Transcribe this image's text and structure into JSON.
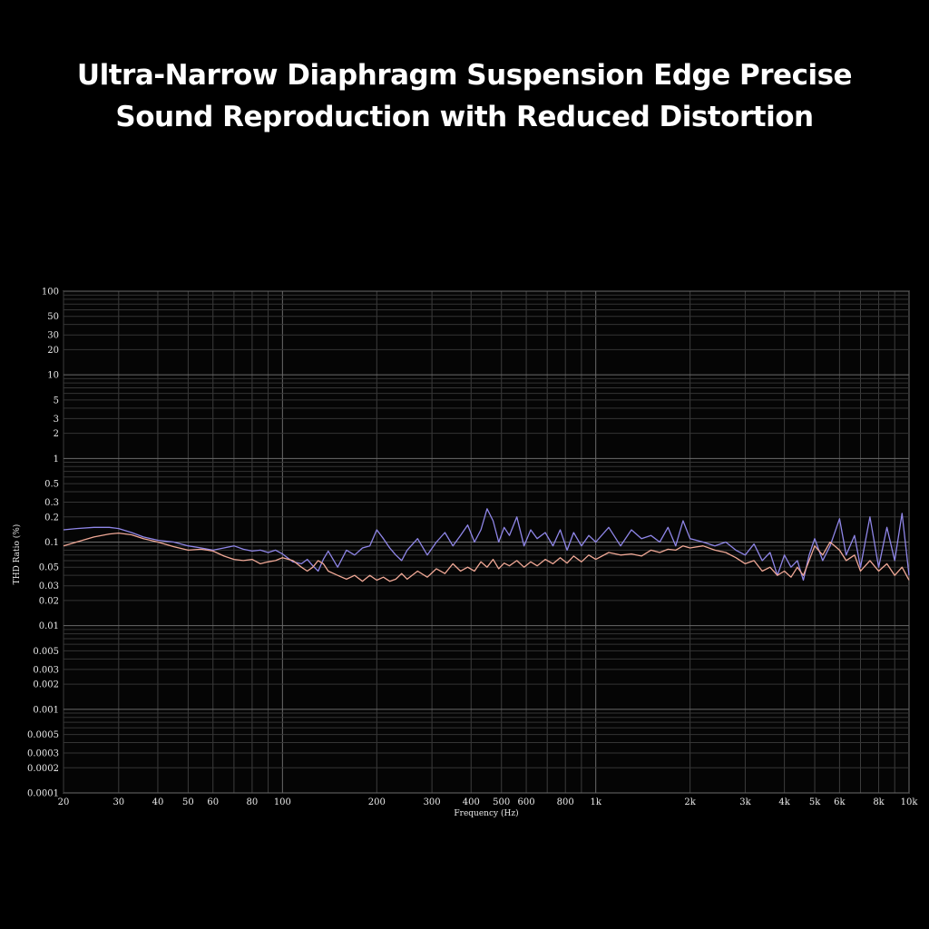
{
  "headline": {
    "line1": "Ultra-Narrow Diaphragm Suspension Edge Precise",
    "line2": "Sound Reproduction with Reduced Distortion"
  },
  "chart_data": {
    "type": "line",
    "title": "",
    "xlabel": "Frequency (Hz)",
    "ylabel": "THD Ratio (%)",
    "x_scale": "log",
    "y_scale": "log",
    "xlim": [
      20,
      10000
    ],
    "ylim": [
      0.0001,
      100
    ],
    "grid": true,
    "x_ticks": [
      {
        "value": 20,
        "label": "20"
      },
      {
        "value": 30,
        "label": "30"
      },
      {
        "value": 40,
        "label": "40"
      },
      {
        "value": 50,
        "label": "50"
      },
      {
        "value": 60,
        "label": "60"
      },
      {
        "value": 80,
        "label": "80"
      },
      {
        "value": 100,
        "label": "100"
      },
      {
        "value": 200,
        "label": "200"
      },
      {
        "value": 300,
        "label": "300"
      },
      {
        "value": 400,
        "label": "400"
      },
      {
        "value": 500,
        "label": "500"
      },
      {
        "value": 600,
        "label": "600"
      },
      {
        "value": 800,
        "label": "800"
      },
      {
        "value": 1000,
        "label": "1k"
      },
      {
        "value": 2000,
        "label": "2k"
      },
      {
        "value": 3000,
        "label": "3k"
      },
      {
        "value": 4000,
        "label": "4k"
      },
      {
        "value": 5000,
        "label": "5k"
      },
      {
        "value": 6000,
        "label": "6k"
      },
      {
        "value": 8000,
        "label": "8k"
      },
      {
        "value": 10000,
        "label": "10k"
      }
    ],
    "y_ticks": [
      {
        "value": 100,
        "label": "100"
      },
      {
        "value": 50,
        "label": "50"
      },
      {
        "value": 30,
        "label": "30"
      },
      {
        "value": 20,
        "label": "20"
      },
      {
        "value": 10,
        "label": "10"
      },
      {
        "value": 5,
        "label": "5"
      },
      {
        "value": 3,
        "label": "3"
      },
      {
        "value": 2,
        "label": "2"
      },
      {
        "value": 1,
        "label": "1"
      },
      {
        "value": 0.5,
        "label": "0.5"
      },
      {
        "value": 0.3,
        "label": "0.3"
      },
      {
        "value": 0.2,
        "label": "0.2"
      },
      {
        "value": 0.1,
        "label": "0.1"
      },
      {
        "value": 0.05,
        "label": "0.05"
      },
      {
        "value": 0.03,
        "label": "0.03"
      },
      {
        "value": 0.02,
        "label": "0.02"
      },
      {
        "value": 0.01,
        "label": "0.01"
      },
      {
        "value": 0.005,
        "label": "0.005"
      },
      {
        "value": 0.003,
        "label": "0.003"
      },
      {
        "value": 0.002,
        "label": "0.002"
      },
      {
        "value": 0.001,
        "label": "0.001"
      },
      {
        "value": 0.0005,
        "label": "0.0005"
      },
      {
        "value": 0.0003,
        "label": "0.0003"
      },
      {
        "value": 0.0002,
        "label": "0.0002"
      },
      {
        "value": 0.0001,
        "label": "0.0001"
      }
    ],
    "series": [
      {
        "color": "#8f86e8",
        "x": [
          20,
          22,
          25,
          28,
          30,
          33,
          36,
          40,
          45,
          50,
          55,
          60,
          65,
          70,
          75,
          80,
          85,
          90,
          95,
          100,
          108,
          115,
          120,
          125,
          130,
          135,
          140,
          150,
          160,
          170,
          180,
          190,
          200,
          210,
          220,
          230,
          240,
          250,
          270,
          290,
          310,
          330,
          350,
          370,
          390,
          410,
          430,
          450,
          470,
          490,
          510,
          530,
          560,
          590,
          620,
          650,
          690,
          730,
          770,
          810,
          850,
          900,
          950,
          1000,
          1100,
          1200,
          1300,
          1400,
          1500,
          1600,
          1700,
          1800,
          1900,
          2000,
          2200,
          2400,
          2600,
          2800,
          3000,
          3200,
          3400,
          3600,
          3800,
          4000,
          4200,
          4400,
          4600,
          4800,
          5000,
          5300,
          5600,
          6000,
          6300,
          6700,
          7000,
          7500,
          8000,
          8500,
          9000,
          9500,
          10000
        ],
        "y": [
          0.14,
          0.145,
          0.15,
          0.15,
          0.145,
          0.13,
          0.115,
          0.105,
          0.1,
          0.09,
          0.085,
          0.08,
          0.085,
          0.09,
          0.082,
          0.078,
          0.08,
          0.075,
          0.08,
          0.072,
          0.058,
          0.055,
          0.062,
          0.052,
          0.045,
          0.062,
          0.078,
          0.05,
          0.08,
          0.07,
          0.085,
          0.09,
          0.14,
          0.11,
          0.085,
          0.07,
          0.06,
          0.08,
          0.11,
          0.07,
          0.1,
          0.13,
          0.09,
          0.12,
          0.16,
          0.1,
          0.14,
          0.25,
          0.18,
          0.1,
          0.15,
          0.12,
          0.2,
          0.09,
          0.14,
          0.11,
          0.13,
          0.09,
          0.14,
          0.08,
          0.13,
          0.09,
          0.12,
          0.1,
          0.15,
          0.09,
          0.14,
          0.11,
          0.12,
          0.1,
          0.15,
          0.09,
          0.18,
          0.11,
          0.1,
          0.09,
          0.1,
          0.08,
          0.07,
          0.095,
          0.06,
          0.075,
          0.04,
          0.07,
          0.05,
          0.06,
          0.035,
          0.07,
          0.11,
          0.06,
          0.09,
          0.19,
          0.07,
          0.12,
          0.05,
          0.2,
          0.05,
          0.15,
          0.06,
          0.22,
          0.04
        ]
      },
      {
        "color": "#f0a896",
        "x": [
          20,
          22,
          25,
          28,
          30,
          33,
          36,
          40,
          45,
          50,
          55,
          60,
          65,
          70,
          75,
          80,
          85,
          90,
          95,
          100,
          108,
          115,
          120,
          125,
          130,
          135,
          140,
          150,
          160,
          170,
          180,
          190,
          200,
          210,
          220,
          230,
          240,
          250,
          270,
          290,
          310,
          330,
          350,
          370,
          390,
          410,
          430,
          450,
          470,
          490,
          510,
          530,
          560,
          590,
          620,
          650,
          690,
          730,
          770,
          810,
          850,
          900,
          950,
          1000,
          1100,
          1200,
          1300,
          1400,
          1500,
          1600,
          1700,
          1800,
          1900,
          2000,
          2200,
          2400,
          2600,
          2800,
          3000,
          3200,
          3400,
          3600,
          3800,
          4000,
          4200,
          4400,
          4600,
          4800,
          5000,
          5300,
          5600,
          6000,
          6300,
          6700,
          7000,
          7500,
          8000,
          8500,
          9000,
          9500,
          10000
        ],
        "y": [
          0.09,
          0.1,
          0.115,
          0.125,
          0.128,
          0.122,
          0.11,
          0.1,
          0.088,
          0.08,
          0.082,
          0.078,
          0.068,
          0.062,
          0.06,
          0.062,
          0.055,
          0.058,
          0.06,
          0.065,
          0.06,
          0.05,
          0.045,
          0.05,
          0.06,
          0.055,
          0.045,
          0.04,
          0.036,
          0.04,
          0.034,
          0.04,
          0.035,
          0.038,
          0.034,
          0.036,
          0.042,
          0.036,
          0.045,
          0.038,
          0.048,
          0.042,
          0.055,
          0.045,
          0.05,
          0.045,
          0.058,
          0.05,
          0.062,
          0.048,
          0.056,
          0.052,
          0.06,
          0.05,
          0.058,
          0.052,
          0.062,
          0.055,
          0.065,
          0.056,
          0.068,
          0.058,
          0.07,
          0.062,
          0.075,
          0.07,
          0.072,
          0.068,
          0.08,
          0.075,
          0.082,
          0.08,
          0.09,
          0.085,
          0.09,
          0.08,
          0.075,
          0.065,
          0.055,
          0.06,
          0.045,
          0.05,
          0.04,
          0.045,
          0.038,
          0.05,
          0.04,
          0.06,
          0.09,
          0.07,
          0.1,
          0.08,
          0.06,
          0.07,
          0.045,
          0.06,
          0.045,
          0.055,
          0.04,
          0.05,
          0.035
        ]
      }
    ]
  }
}
